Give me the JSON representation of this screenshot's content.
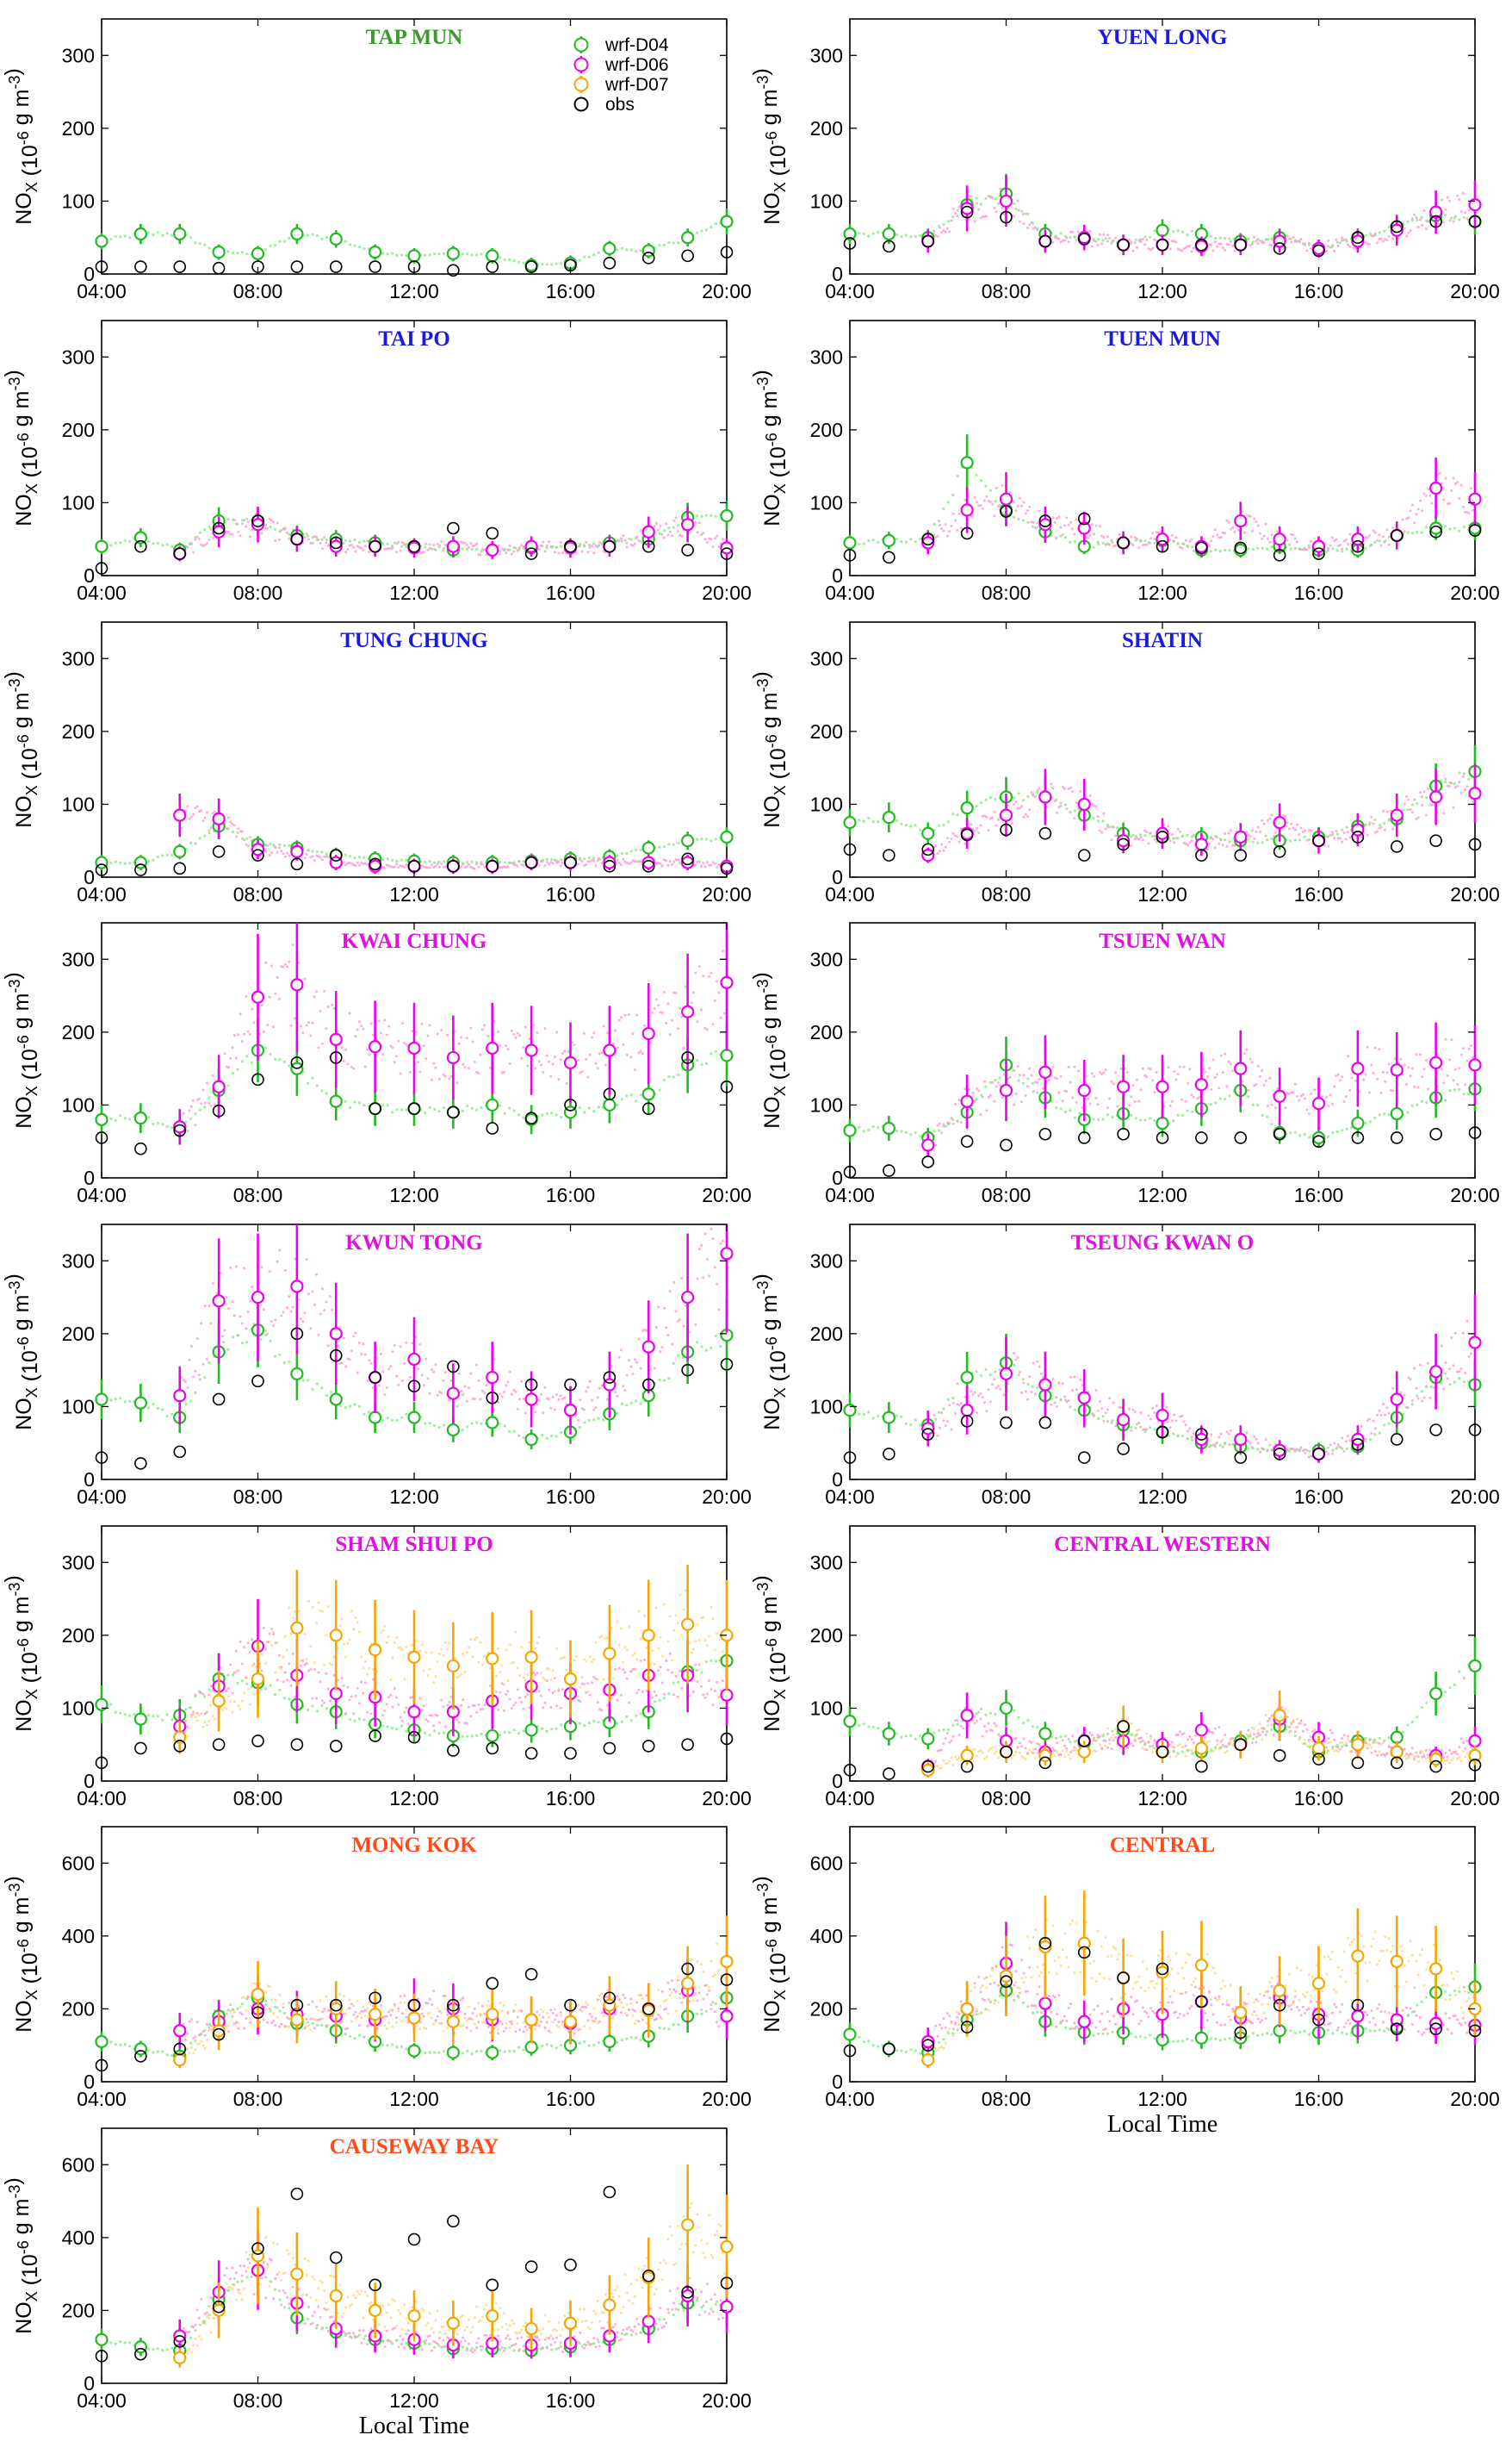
{
  "chart_data": {
    "type": "scatter",
    "figure_kind": "small-multiples time series with error bars",
    "x_ticks": [
      "04:00",
      "08:00",
      "12:00",
      "16:00",
      "20:00"
    ],
    "x_range": [
      4,
      20
    ],
    "xlabel": "Local Time",
    "ylabel_main": "NO",
    "ylabel_sub": "X",
    "ylabel_unit": "(10",
    "ylabel_exp": "-6",
    "ylabel_unit2": " g m",
    "ylabel_exp2": "-3",
    "ylabel_close": ")",
    "legend": [
      {
        "name": "wrf-D04",
        "color": "#22bb22"
      },
      {
        "name": "wrf-D06",
        "color": "#ee00ee"
      },
      {
        "name": "wrf-D07",
        "color": "#f5a700"
      },
      {
        "name": "obs",
        "color": "#000000"
      }
    ],
    "colors": {
      "d04": "#22bb22",
      "d06": "#ee00ee",
      "d07": "#f5a700",
      "obs": "#000000",
      "d06_faint": "#ff8fcf",
      "d07_faint": "#ffd27a",
      "title_green": "#3a9a2a",
      "title_blue": "#1a1adf",
      "title_magenta": "#e010e0",
      "title_orange": "#ff4a1a"
    },
    "hours": [
      4,
      5,
      6,
      7,
      8,
      9,
      10,
      11,
      12,
      13,
      14,
      15,
      16,
      17,
      18,
      19,
      20
    ],
    "panels": [
      {
        "title": "TAP MUN",
        "title_color": "#3a9a2a",
        "ylim": [
          0,
          350
        ],
        "yticks": [
          "0",
          "100",
          "200",
          "300"
        ],
        "d04": [
          45,
          55,
          55,
          30,
          28,
          55,
          48,
          30,
          25,
          28,
          25,
          12,
          15,
          35,
          32,
          50,
          72
        ],
        "d06": null,
        "d07": null,
        "obs": [
          10,
          10,
          10,
          8,
          10,
          10,
          10,
          10,
          10,
          5,
          10,
          10,
          12,
          15,
          22,
          25,
          30
        ]
      },
      {
        "title": "YUEN LONG",
        "title_color": "#1a1adf",
        "ylim": [
          0,
          350
        ],
        "yticks": [
          "0",
          "100",
          "200",
          "300"
        ],
        "d04": [
          55,
          55,
          50,
          95,
          110,
          55,
          50,
          40,
          60,
          55,
          45,
          50,
          35,
          50,
          65,
          80,
          72
        ],
        "d06": [
          null,
          null,
          45,
          90,
          100,
          45,
          50,
          40,
          40,
          38,
          40,
          45,
          35,
          45,
          60,
          85,
          95
        ],
        "d07": null,
        "obs": [
          42,
          38,
          45,
          85,
          78,
          45,
          48,
          40,
          40,
          40,
          40,
          35,
          32,
          50,
          65,
          72,
          72
        ]
      },
      {
        "title": "TAI PO",
        "title_color": "#1a1adf",
        "ylim": [
          0,
          350
        ],
        "yticks": [
          "0",
          "100",
          "200",
          "300"
        ],
        "d04": [
          40,
          52,
          35,
          75,
          75,
          55,
          50,
          45,
          40,
          35,
          35,
          38,
          40,
          45,
          50,
          80,
          82
        ],
        "d06": [
          null,
          null,
          30,
          60,
          70,
          50,
          40,
          40,
          38,
          40,
          35,
          40,
          38,
          40,
          60,
          70,
          38
        ],
        "d07": null,
        "obs": [
          10,
          40,
          30,
          65,
          75,
          50,
          45,
          40,
          40,
          65,
          58,
          30,
          40,
          40,
          40,
          35,
          30
        ]
      },
      {
        "title": "TUEN MUN",
        "title_color": "#1a1adf",
        "ylim": [
          0,
          350
        ],
        "yticks": [
          "0",
          "100",
          "200",
          "300"
        ],
        "d04": [
          45,
          48,
          50,
          155,
          90,
          60,
          40,
          45,
          48,
          35,
          35,
          40,
          35,
          35,
          55,
          65,
          65
        ],
        "d06": [
          null,
          null,
          45,
          90,
          105,
          70,
          65,
          45,
          50,
          40,
          75,
          50,
          40,
          50,
          55,
          120,
          105
        ],
        "d07": null,
        "obs": [
          28,
          25,
          50,
          58,
          88,
          75,
          78,
          45,
          40,
          38,
          38,
          28,
          30,
          40,
          55,
          60,
          62
        ]
      },
      {
        "title": "TUNG CHUNG",
        "title_color": "#1a1adf",
        "ylim": [
          0,
          350
        ],
        "yticks": [
          "0",
          "100",
          "200",
          "300"
        ],
        "d04": [
          20,
          20,
          35,
          70,
          45,
          40,
          30,
          25,
          22,
          20,
          20,
          22,
          25,
          28,
          40,
          50,
          55
        ],
        "d06": [
          null,
          null,
          85,
          80,
          38,
          35,
          20,
          15,
          15,
          15,
          15,
          20,
          20,
          20,
          20,
          20,
          15
        ],
        "d07": null,
        "obs": [
          10,
          10,
          12,
          35,
          30,
          18,
          30,
          18,
          15,
          15,
          15,
          20,
          20,
          15,
          15,
          25,
          12
        ]
      },
      {
        "title": "SHATIN",
        "title_color": "#1a1adf",
        "ylim": [
          0,
          350
        ],
        "yticks": [
          "0",
          "100",
          "200",
          "300"
        ],
        "d04": [
          75,
          82,
          60,
          95,
          110,
          110,
          85,
          60,
          55,
          55,
          50,
          50,
          55,
          70,
          80,
          125,
          145
        ],
        "d06": [
          null,
          null,
          30,
          60,
          85,
          110,
          100,
          50,
          60,
          45,
          55,
          75,
          50,
          65,
          85,
          110,
          115
        ],
        "d07": null,
        "obs": [
          38,
          30,
          38,
          58,
          65,
          60,
          30,
          45,
          55,
          30,
          30,
          35,
          50,
          55,
          42,
          50,
          45
        ]
      },
      {
        "title": "KWAI CHUNG",
        "title_color": "#e010e0",
        "ylim": [
          0,
          350
        ],
        "yticks": [
          "0",
          "100",
          "200",
          "300"
        ],
        "d04": [
          80,
          82,
          70,
          120,
          175,
          150,
          105,
          95,
          95,
          90,
          100,
          80,
          90,
          100,
          115,
          155,
          168
        ],
        "d06": [
          null,
          null,
          70,
          125,
          248,
          265,
          190,
          180,
          178,
          165,
          178,
          175,
          158,
          175,
          198,
          228,
          268
        ],
        "d07": null,
        "obs": [
          55,
          40,
          65,
          92,
          135,
          158,
          165,
          95,
          95,
          90,
          68,
          82,
          100,
          115,
          95,
          165,
          125
        ]
      },
      {
        "title": "TSUEN WAN",
        "title_color": "#e010e0",
        "ylim": [
          0,
          350
        ],
        "yticks": [
          "0",
          "100",
          "200",
          "300"
        ],
        "d04": [
          65,
          68,
          55,
          90,
          155,
          110,
          80,
          88,
          75,
          95,
          120,
          62,
          55,
          75,
          88,
          110,
          122
        ],
        "d06": [
          null,
          null,
          45,
          105,
          120,
          145,
          120,
          125,
          125,
          128,
          150,
          112,
          102,
          150,
          148,
          158,
          155
        ],
        "d07": null,
        "obs": [
          8,
          10,
          22,
          50,
          45,
          60,
          55,
          60,
          55,
          55,
          55,
          60,
          50,
          55,
          55,
          60,
          62
        ]
      },
      {
        "title": "KWUN TONG",
        "title_color": "#e010e0",
        "ylim": [
          0,
          350
        ],
        "yticks": [
          "0",
          "100",
          "200",
          "300"
        ],
        "d04": [
          110,
          105,
          85,
          175,
          205,
          145,
          110,
          85,
          85,
          68,
          78,
          55,
          65,
          90,
          115,
          175,
          198
        ],
        "d06": [
          null,
          null,
          115,
          245,
          250,
          265,
          200,
          140,
          165,
          118,
          140,
          110,
          95,
          130,
          182,
          250,
          310
        ],
        "d07": null,
        "obs": [
          30,
          22,
          38,
          110,
          135,
          200,
          170,
          140,
          128,
          155,
          112,
          130,
          130,
          140,
          130,
          150,
          158
        ]
      },
      {
        "title": "TSEUNG KWAN O",
        "title_color": "#e010e0",
        "ylim": [
          0,
          350
        ],
        "yticks": [
          "0",
          "100",
          "200",
          "300"
        ],
        "d04": [
          95,
          85,
          75,
          140,
          160,
          115,
          95,
          75,
          65,
          50,
          45,
          40,
          40,
          45,
          85,
          140,
          130
        ],
        "d06": [
          null,
          null,
          70,
          95,
          145,
          130,
          112,
          82,
          88,
          55,
          55,
          40,
          35,
          55,
          110,
          148,
          188
        ],
        "d07": null,
        "obs": [
          30,
          35,
          62,
          80,
          78,
          78,
          30,
          42,
          65,
          62,
          30,
          35,
          35,
          48,
          55,
          68,
          68
        ]
      },
      {
        "title": "SHAM SHUI PO",
        "title_color": "#e010e0",
        "ylim": [
          0,
          350
        ],
        "yticks": [
          "0",
          "100",
          "200",
          "300"
        ],
        "d04": [
          105,
          85,
          90,
          140,
          135,
          105,
          95,
          78,
          70,
          62,
          62,
          70,
          75,
          80,
          95,
          150,
          165
        ],
        "d06": [
          null,
          null,
          75,
          130,
          185,
          145,
          120,
          115,
          95,
          95,
          110,
          130,
          120,
          125,
          145,
          145,
          118
        ],
        "d07": [
          null,
          null,
          60,
          110,
          140,
          210,
          200,
          180,
          170,
          158,
          168,
          170,
          140,
          175,
          200,
          215,
          200
        ],
        "obs": [
          25,
          45,
          48,
          50,
          55,
          50,
          48,
          62,
          60,
          42,
          45,
          38,
          38,
          45,
          48,
          50,
          58
        ]
      },
      {
        "title": "CENTRAL WESTERN",
        "title_color": "#e010e0",
        "ylim": [
          0,
          350
        ],
        "yticks": [
          "0",
          "100",
          "200",
          "300"
        ],
        "d04": [
          82,
          65,
          58,
          90,
          100,
          65,
          52,
          70,
          40,
          40,
          55,
          75,
          40,
          55,
          60,
          120,
          158
        ],
        "d06": [
          null,
          null,
          20,
          90,
          55,
          40,
          55,
          55,
          50,
          70,
          50,
          85,
          60,
          50,
          40,
          35,
          55
        ],
        "d07": [
          null,
          null,
          15,
          35,
          40,
          35,
          40,
          75,
          40,
          45,
          50,
          90,
          45,
          50,
          40,
          30,
          35
        ],
        "obs": [
          15,
          10,
          20,
          20,
          40,
          25,
          55,
          75,
          40,
          20,
          50,
          35,
          30,
          25,
          25,
          20,
          22
        ]
      },
      {
        "title": "MONG KOK",
        "title_color": "#ff4a1a",
        "ylim": [
          0,
          700
        ],
        "yticks": [
          "0",
          "200",
          "400",
          "600"
        ],
        "d04": [
          110,
          90,
          70,
          180,
          230,
          160,
          140,
          110,
          85,
          80,
          80,
          95,
          100,
          110,
          125,
          180,
          230
        ],
        "d06": [
          null,
          null,
          140,
          165,
          200,
          185,
          180,
          170,
          210,
          200,
          170,
          170,
          160,
          200,
          200,
          250,
          180
        ],
        "d07": [
          null,
          null,
          60,
          140,
          240,
          170,
          200,
          185,
          175,
          165,
          185,
          170,
          165,
          210,
          195,
          270,
          330
        ],
        "obs": [
          45,
          70,
          90,
          130,
          190,
          210,
          210,
          230,
          210,
          210,
          270,
          295,
          210,
          230,
          200,
          310,
          280
        ]
      },
      {
        "title": "CENTRAL",
        "title_color": "#ff4a1a",
        "ylim": [
          0,
          700
        ],
        "yticks": [
          "0",
          "200",
          "400",
          "600"
        ],
        "d04": [
          130,
          90,
          80,
          170,
          250,
          165,
          135,
          135,
          115,
          120,
          120,
          140,
          135,
          140,
          150,
          245,
          260
        ],
        "d06": [
          null,
          null,
          110,
          200,
          325,
          215,
          165,
          200,
          185,
          220,
          175,
          230,
          185,
          180,
          170,
          160,
          155
        ],
        "d07": [
          null,
          null,
          60,
          200,
          290,
          370,
          380,
          285,
          300,
          320,
          190,
          250,
          270,
          345,
          330,
          310,
          200
        ],
        "obs": [
          85,
          90,
          100,
          150,
          275,
          380,
          355,
          285,
          310,
          220,
          135,
          210,
          170,
          210,
          145,
          145,
          140
        ]
      },
      {
        "title": "CAUSEWAY BAY",
        "title_color": "#ff4a1a",
        "ylim": [
          0,
          700
        ],
        "yticks": [
          "0",
          "200",
          "400",
          "600"
        ],
        "d04": [
          120,
          100,
          90,
          230,
          310,
          180,
          140,
          120,
          110,
          95,
          95,
          90,
          100,
          120,
          150,
          220,
          210
        ],
        "d06": [
          null,
          null,
          130,
          250,
          310,
          220,
          150,
          130,
          120,
          105,
          110,
          105,
          110,
          130,
          170,
          240,
          210
        ],
        "d07": [
          null,
          null,
          70,
          200,
          350,
          300,
          240,
          200,
          185,
          165,
          185,
          150,
          165,
          215,
          290,
          435,
          375
        ],
        "obs": [
          75,
          80,
          115,
          210,
          370,
          520,
          345,
          270,
          395,
          445,
          270,
          320,
          325,
          525,
          295,
          250,
          275
        ]
      }
    ]
  }
}
